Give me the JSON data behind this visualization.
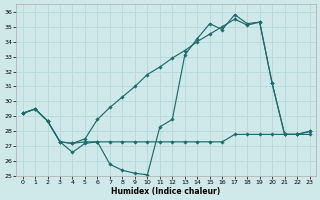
{
  "xlabel": "Humidex (Indice chaleur)",
  "xlim": [
    -0.5,
    23.5
  ],
  "ylim": [
    25,
    36.5
  ],
  "yticks": [
    25,
    26,
    27,
    28,
    29,
    30,
    31,
    32,
    33,
    34,
    35,
    36
  ],
  "xticks": [
    0,
    1,
    2,
    3,
    4,
    5,
    6,
    7,
    8,
    9,
    10,
    11,
    12,
    13,
    14,
    15,
    16,
    17,
    18,
    19,
    20,
    21,
    22,
    23
  ],
  "bg_color": "#cfe9eb",
  "line_color": "#1e6b6b",
  "grid_color": "#b8d8db",
  "line1_x": [
    0,
    1,
    2,
    3,
    4,
    5,
    6,
    7,
    8,
    9,
    10,
    11,
    12,
    13,
    14,
    15,
    16,
    17,
    18,
    19,
    20,
    21,
    22,
    23
  ],
  "line1_y": [
    29.2,
    29.5,
    28.7,
    27.3,
    26.6,
    27.2,
    27.3,
    25.8,
    25.4,
    25.2,
    25.1,
    28.3,
    28.8,
    33.1,
    34.2,
    35.2,
    34.8,
    35.8,
    35.2,
    35.3,
    31.2,
    27.8,
    27.8,
    28.0
  ],
  "line2_x": [
    0,
    1,
    2,
    3,
    4,
    5,
    6,
    7,
    8,
    9,
    10,
    11,
    12,
    13,
    14,
    15,
    16,
    17,
    18,
    19,
    20,
    21,
    22,
    23
  ],
  "line2_y": [
    29.2,
    29.5,
    28.7,
    27.3,
    27.2,
    27.3,
    27.3,
    27.3,
    27.3,
    27.3,
    27.3,
    27.3,
    27.3,
    27.3,
    27.3,
    27.3,
    27.3,
    27.8,
    27.8,
    27.8,
    27.8,
    27.8,
    27.8,
    27.8
  ],
  "line3_x": [
    0,
    1,
    2,
    3,
    4,
    5,
    6,
    7,
    8,
    9,
    10,
    11,
    12,
    13,
    14,
    15,
    16,
    17,
    18,
    19,
    20,
    21,
    22,
    23
  ],
  "line3_y": [
    29.2,
    29.5,
    28.7,
    27.3,
    27.2,
    27.5,
    28.8,
    29.6,
    30.3,
    31.0,
    31.8,
    32.3,
    32.9,
    33.4,
    34.0,
    34.5,
    35.0,
    35.5,
    35.1,
    35.3,
    31.2,
    27.8,
    27.8,
    28.0
  ]
}
